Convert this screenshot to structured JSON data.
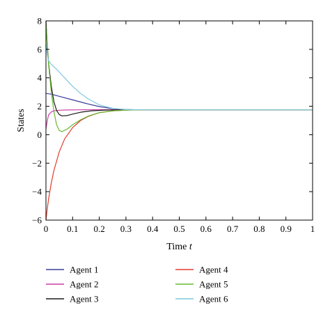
{
  "chart_data": {
    "type": "line",
    "title": "",
    "xlabel": "Time",
    "xlabel_var": "t",
    "ylabel": "States",
    "xlim": [
      0,
      1
    ],
    "ylim": [
      -6,
      8
    ],
    "x_ticks": [
      "0",
      "0.1",
      "0.2",
      "0.3",
      "0.4",
      "0.5",
      "0.6",
      "0.7",
      "0.8",
      "0.9",
      "1"
    ],
    "y_ticks": [
      "−6",
      "−4",
      "−2",
      "0",
      "2",
      "4",
      "6",
      "8"
    ],
    "grid": false,
    "legend_placement": "below",
    "consensus_value": 1.75,
    "series": [
      {
        "name": "Agent 1",
        "color": "#3b3b9a",
        "x": [
          0,
          0.02,
          0.05,
          0.1,
          0.15,
          0.2,
          0.25,
          0.3,
          0.35,
          0.4,
          0.5,
          0.6,
          0.7,
          0.8,
          0.9,
          1.0
        ],
        "y": [
          2.9,
          2.85,
          2.7,
          2.45,
          2.2,
          1.98,
          1.83,
          1.77,
          1.75,
          1.75,
          1.75,
          1.75,
          1.75,
          1.75,
          1.75,
          1.75
        ]
      },
      {
        "name": "Agent 2",
        "color": "#cc3fa8",
        "x": [
          0,
          0.005,
          0.01,
          0.02,
          0.03,
          0.05,
          0.08,
          0.12,
          0.18,
          0.25,
          0.3,
          0.4,
          0.5,
          0.6,
          0.7,
          0.8,
          0.9,
          1.0
        ],
        "y": [
          0.4,
          1.0,
          1.4,
          1.6,
          1.68,
          1.72,
          1.74,
          1.75,
          1.76,
          1.76,
          1.75,
          1.75,
          1.75,
          1.75,
          1.75,
          1.75,
          1.75,
          1.75
        ]
      },
      {
        "name": "Agent 3",
        "color": "#1a1a1a",
        "x": [
          0,
          0.005,
          0.01,
          0.02,
          0.03,
          0.04,
          0.05,
          0.06,
          0.08,
          0.1,
          0.13,
          0.17,
          0.22,
          0.27,
          0.32,
          0.4,
          0.5,
          0.6,
          0.7,
          0.8,
          0.9,
          1.0
        ],
        "y": [
          8.0,
          6.3,
          5.0,
          3.4,
          2.3,
          1.7,
          1.42,
          1.32,
          1.35,
          1.45,
          1.58,
          1.68,
          1.73,
          1.75,
          1.75,
          1.75,
          1.75,
          1.75,
          1.75,
          1.75,
          1.75,
          1.75
        ]
      },
      {
        "name": "Agent 4",
        "color": "#e23b2a",
        "x": [
          0,
          0.005,
          0.01,
          0.02,
          0.03,
          0.05,
          0.07,
          0.1,
          0.13,
          0.16,
          0.2,
          0.25,
          0.3,
          0.35,
          0.4,
          0.5,
          0.6,
          0.7,
          0.8,
          0.9,
          1.0
        ],
        "y": [
          -6.0,
          -5.2,
          -4.5,
          -3.4,
          -2.5,
          -1.2,
          -0.3,
          0.5,
          1.0,
          1.3,
          1.55,
          1.68,
          1.73,
          1.75,
          1.75,
          1.75,
          1.75,
          1.75,
          1.75,
          1.75,
          1.75
        ]
      },
      {
        "name": "Agent 5",
        "color": "#66b832",
        "x": [
          0,
          0.005,
          0.01,
          0.02,
          0.03,
          0.04,
          0.05,
          0.06,
          0.08,
          0.1,
          0.13,
          0.16,
          0.2,
          0.25,
          0.3,
          0.35,
          0.4,
          0.5,
          0.6,
          0.7,
          0.8,
          0.9,
          1.0
        ],
        "y": [
          7.8,
          6.2,
          4.9,
          3.0,
          1.6,
          0.7,
          0.3,
          0.22,
          0.4,
          0.7,
          1.05,
          1.32,
          1.55,
          1.68,
          1.73,
          1.75,
          1.75,
          1.75,
          1.75,
          1.75,
          1.75,
          1.75,
          1.75
        ]
      },
      {
        "name": "Agent 6",
        "color": "#7cc8e0",
        "x": [
          0,
          0.005,
          0.01,
          0.02,
          0.04,
          0.06,
          0.08,
          0.1,
          0.13,
          0.16,
          0.2,
          0.25,
          0.3,
          0.35,
          0.4,
          0.5,
          0.6,
          0.7,
          0.8,
          0.9,
          1.0
        ],
        "y": [
          6.4,
          5.6,
          5.2,
          4.95,
          4.6,
          4.2,
          3.8,
          3.4,
          2.9,
          2.5,
          2.1,
          1.85,
          1.77,
          1.75,
          1.75,
          1.75,
          1.75,
          1.75,
          1.75,
          1.75,
          1.75
        ]
      }
    ]
  }
}
